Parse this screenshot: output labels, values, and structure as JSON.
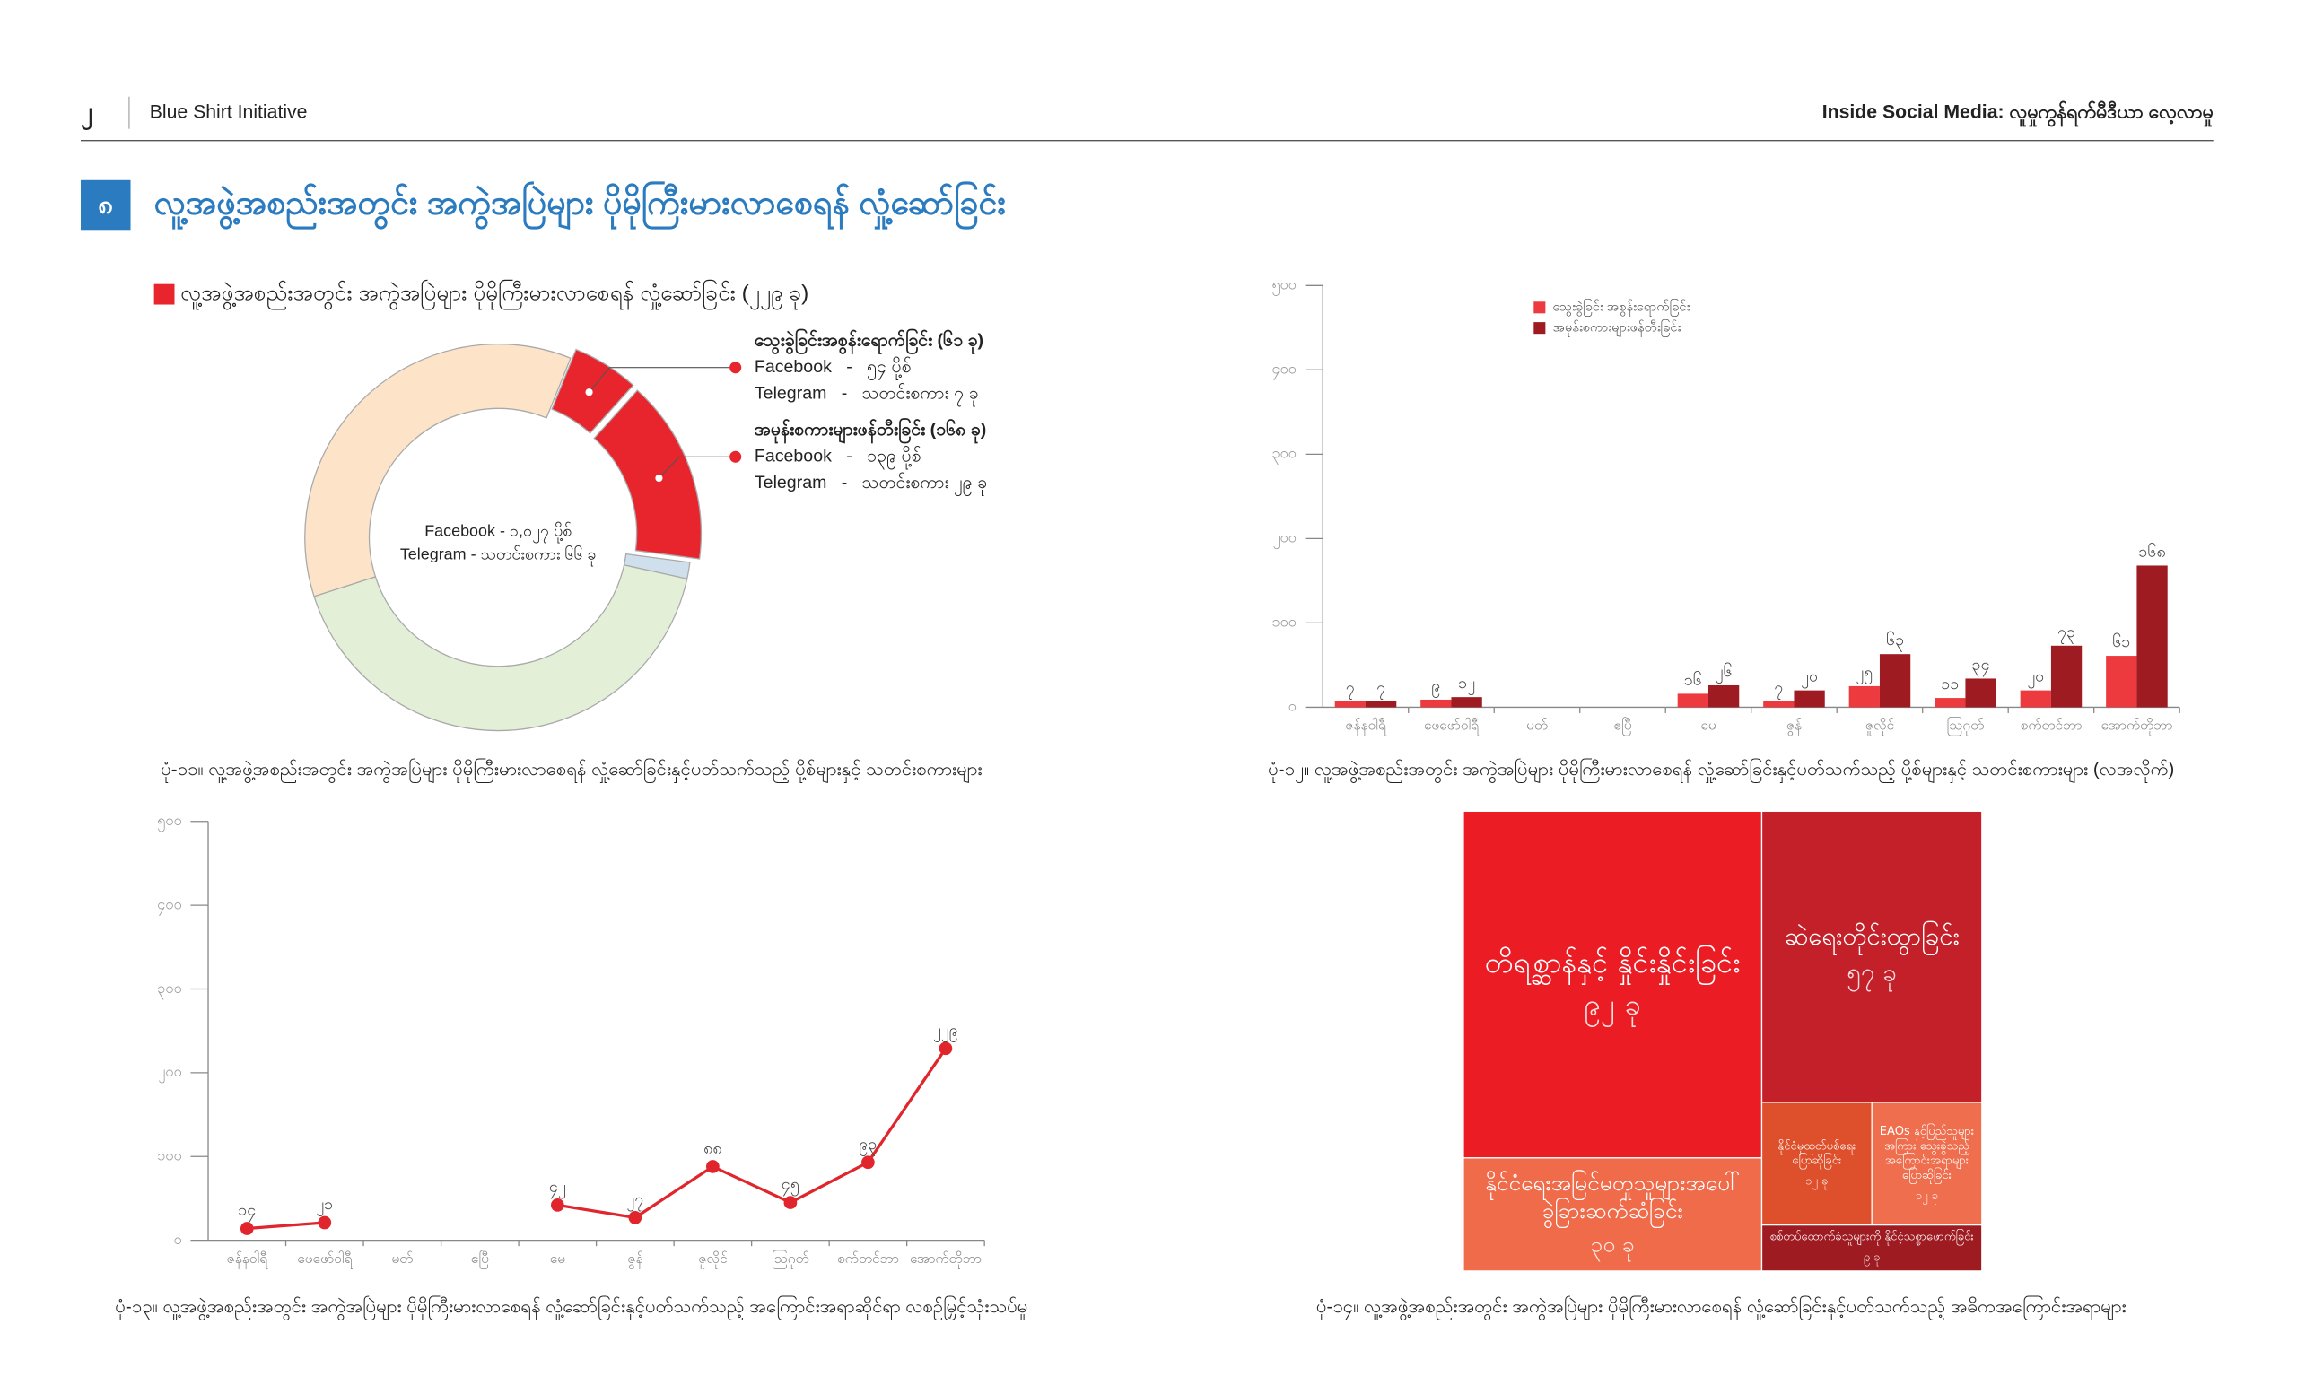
{
  "header": {
    "page_number": "၂",
    "publisher": "Blue Shirt Initiative",
    "report_title": "Inside Social Media: လူမှုကွန်ရက်မီဒီယာ လေ့လာမှု"
  },
  "section": {
    "number": "၈",
    "title": "လူ့အဖွဲ့အစည်းအတွင်း အကွဲအပြဲများ ပိုမိုကြီးမားလာစေရန် လှုံ့ဆော်ခြင်း"
  },
  "chart_data": [
    {
      "type": "pie",
      "title": "လူ့အဖွဲ့အစည်းအတွင်း အကွဲအပြဲများ ပိုမိုကြီးမားလာစေရန် လှုံ့ဆော်ခြင်း (၂၂၉ ခု)",
      "title_color": "#e8252d",
      "center_text": [
        "Facebook - ၁,၀၂၇ ပို့စ်",
        "Telegram - သတင်းစကား ၆၆ ခု"
      ],
      "categories": [
        "သွေးခွဲခြင်းအစွန်းရောက်ခြင်း (၆၁ ခု)",
        "အမုန်းစကားများဖန်တီးခြင်း (၁၆၈ ခု)",
        null,
        null,
        null
      ],
      "details": [
        [
          "Facebook   -   ၅၄ ပို့စ်",
          "Telegram   -   သတင်းစကား ၇ ခု"
        ],
        [
          "Facebook   -   ၁၃၉ ပို့စ်",
          "Telegram   -   သတင်းစကား ၂၉ ခု"
        ],
        null,
        null,
        null
      ],
      "values": [
        61,
        168,
        15,
        455,
        394
      ],
      "colors": [
        "#e8252d",
        "#e8252d",
        "#cfdfec",
        "#e3efd7",
        "#fde4c8"
      ],
      "caption": "ပုံ-၁၁။ လူ့အဖွဲ့အစည်းအတွင်း အကွဲအပြဲများ ပိုမိုကြီးမားလာစေရန် လှုံ့ဆော်ခြင်းနှင့်ပတ်သက်သည့် ပို့စ်များနှင့် သတင်းစကားများ"
    },
    {
      "type": "bar",
      "categories": [
        "ဇန်နဝါရီ",
        "ဖေဖော်ဝါရီ",
        "မတ်",
        "ဧပြီ",
        "မေ",
        "ဇွန်",
        "ဇူလိုင်",
        "ဩဂုတ်",
        "စက်တင်ဘာ",
        "အောက်တိုဘာ"
      ],
      "series": [
        {
          "name": "သွေးခွဲခြင်း အစွန်းရောက်ခြင်း",
          "color": "#ec3a3f",
          "values": [
            7,
            9,
            null,
            null,
            16,
            7,
            25,
            11,
            20,
            61
          ],
          "value_labels": [
            "၇",
            "၉",
            null,
            null,
            "၁၆",
            "၇",
            "၂၅",
            "၁၁",
            "၂၀",
            "၆၁"
          ]
        },
        {
          "name": "အမုန်းစကားများဖန်တီးခြင်း",
          "color": "#9e1b21",
          "values": [
            7,
            12,
            null,
            null,
            26,
            20,
            63,
            34,
            73,
            168
          ],
          "value_labels": [
            "၇",
            "၁၂",
            null,
            null,
            "၂၆",
            "၂၀",
            "၆၃",
            "၃၄",
            "၇၃",
            "၁၆၈"
          ]
        }
      ],
      "ylim": [
        0,
        500
      ],
      "yticks": [
        {
          "value": 0,
          "label": "၀"
        },
        {
          "value": 100,
          "label": "၁၀၀"
        },
        {
          "value": 200,
          "label": "၂၀၀"
        },
        {
          "value": 300,
          "label": "၃၀၀"
        },
        {
          "value": 400,
          "label": "၄၀၀"
        },
        {
          "value": 500,
          "label": "၅၀၀"
        }
      ],
      "caption": "ပုံ-၁၂။ လူ့အဖွဲ့အစည်းအတွင်း အကွဲအပြဲများ ပိုမိုကြီးမားလာစေရန် လှုံ့ဆော်ခြင်းနှင့်ပတ်သက်သည့် ပို့စ်များနှင့် သတင်းစကားများ (လအလိုက်)"
    },
    {
      "type": "line",
      "categories": [
        "ဇန်နဝါရီ",
        "ဖေဖော်ဝါရီ",
        "မတ်",
        "ဧပြီ",
        "မေ",
        "ဇွန်",
        "ဇူလိုင်",
        "ဩဂုတ်",
        "စက်တင်ဘာ",
        "အောက်တိုဘာ"
      ],
      "values": [
        14,
        21,
        null,
        null,
        42,
        27,
        88,
        45,
        93,
        229
      ],
      "value_labels": [
        "၁၄",
        "၂၁",
        null,
        null,
        "၄၂",
        "၂၇",
        "၈၈",
        "၄၅",
        "၉၃",
        "၂၂၉"
      ],
      "color": "#e0262c",
      "ylim": [
        0,
        500
      ],
      "yticks": [
        {
          "value": 0,
          "label": "၀"
        },
        {
          "value": 100,
          "label": "၁၀၀"
        },
        {
          "value": 200,
          "label": "၂၀၀"
        },
        {
          "value": 300,
          "label": "၃၀၀"
        },
        {
          "value": 400,
          "label": "၄၀၀"
        },
        {
          "value": 500,
          "label": "၅၀၀"
        }
      ],
      "caption": "ပုံ-၁၃။ လူ့အဖွဲ့အစည်းအတွင်း အကွဲအပြဲများ ပိုမိုကြီးမားလာစေရန် လှုံ့ဆော်ခြင်းနှင့်ပတ်သက်သည့် အကြောင်းအရာဆိုင်ရာ လစဉ်မြှင့်သုံးသပ်မှု"
    },
    {
      "type": "treemap",
      "categories": [
        "တိရစ္ဆာန်နှင့် နှိုင်းနှိုင်းခြင်း",
        "ဆဲရေးတိုင်းထွာခြင်း",
        "နိုင်ငံရေးအမြင်မတူသူများအပေါ် ခွဲခြားဆက်ဆံခြင်း",
        "နိုင်ငံမှထုတ်ပစ်ရေး ပြောဆိုခြင်း",
        "EAOs နှင့်ပြည်သူများ အကြား သွေးခွဲသည့် အကြောင်းအရာများ ပြောဆိုခြင်း",
        "စစ်တပ်ထောက်ခံသူများကို နိုင်ငံ့သစ္စာဖောက်ခြင်း"
      ],
      "values": [
        92,
        57,
        30,
        12,
        12,
        9
      ],
      "value_labels": [
        "၉၂ ခု",
        "၅၇ ခု",
        "၃၀ ခု",
        "၁၂ ခု",
        "၁၂ ခု",
        "၉ ခု"
      ],
      "colors": [
        "#ec1c24",
        "#c4202a",
        "#ef6b4a",
        "#de4f2c",
        "#ee6e4e",
        "#9e1b22"
      ],
      "caption": "ပုံ-၁၄။ လူ့အဖွဲ့အစည်းအတွင်း အကွဲအပြဲများ ပိုမိုကြီးမားလာစေရန် လှုံ့ဆော်ခြင်းနှင့်ပတ်သက်သည့် အဓိကအကြောင်းအရာများ"
    }
  ]
}
